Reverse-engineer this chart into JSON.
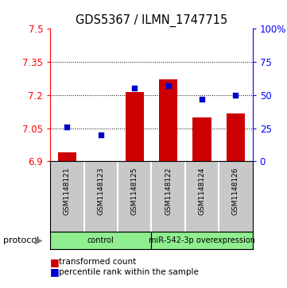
{
  "title": "GDS5367 / ILMN_1747715",
  "samples": [
    "GSM1148121",
    "GSM1148123",
    "GSM1148125",
    "GSM1148122",
    "GSM1148124",
    "GSM1148126"
  ],
  "red_values": [
    6.94,
    6.902,
    7.215,
    7.27,
    7.1,
    7.115
  ],
  "blue_values": [
    26,
    20,
    55,
    57,
    47,
    50
  ],
  "ymin": 6.9,
  "ymax": 7.5,
  "y2min": 0,
  "y2max": 100,
  "yticks": [
    6.9,
    7.05,
    7.2,
    7.35,
    7.5
  ],
  "ytick_labels": [
    "6.9",
    "7.05",
    "7.2",
    "7.35",
    "7.5"
  ],
  "y2ticks": [
    0,
    25,
    50,
    75,
    100
  ],
  "y2tick_labels": [
    "0",
    "25",
    "50",
    "75",
    "100%"
  ],
  "gridlines": [
    7.05,
    7.2,
    7.35
  ],
  "bar_color": "#cc0000",
  "dot_color": "#0000cc",
  "bar_width": 0.55,
  "protocol_groups": [
    {
      "label": "control",
      "indices": [
        0,
        1,
        2
      ],
      "color": "#90ee90"
    },
    {
      "label": "miR-542-3p overexpression",
      "indices": [
        3,
        4,
        5
      ],
      "color": "#90ee90"
    }
  ],
  "legend_bar_label": "transformed count",
  "legend_dot_label": "percentile rank within the sample",
  "protocol_label": "protocol",
  "sample_bg_color": "#c8c8c8",
  "sample_divider_color": "#ffffff"
}
